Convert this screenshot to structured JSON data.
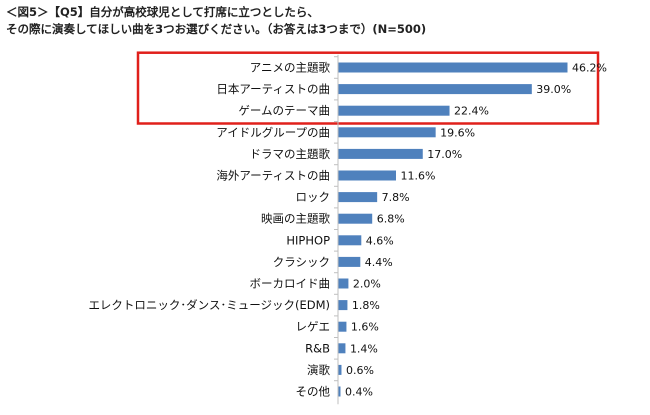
{
  "title_lines": [
    "＜図5＞【Q5】自分が高校球児として打席に立つとしたら、",
    "その際に演奏してほしい曲を3つお選びください。（お答えは3つまで）(N=500)"
  ],
  "colors": {
    "bar": "#4f81bd",
    "highlight_box": "#e0201b",
    "axis": "#bfbfbf"
  },
  "chart_data": {
    "type": "bar",
    "orientation": "horizontal",
    "title": "＜図5＞【Q5】自分が高校球児として打席に立つとしたら、その際に演奏してほしい曲を3つお選びください。（お答えは3つまで）(N=500)",
    "categories": [
      "アニメの主題歌",
      "日本アーティストの曲",
      "ゲームのテーマ曲",
      "アイドルグループの曲",
      "ドラマの主題歌",
      "海外アーティストの曲",
      "ロック",
      "映画の主題歌",
      "HIPHOP",
      "クラシック",
      "ボーカロイド曲",
      "エレクトロニック･ダンス･ミュージック(EDM)",
      "レゲエ",
      "R&B",
      "演歌",
      "その他"
    ],
    "values": [
      46.2,
      39.0,
      22.4,
      19.6,
      17.0,
      11.6,
      7.8,
      6.8,
      4.6,
      4.4,
      2.0,
      1.8,
      1.6,
      1.4,
      0.6,
      0.4
    ],
    "value_labels": [
      "46.2%",
      "39.0%",
      "22.4%",
      "19.6%",
      "17.0%",
      "11.6%",
      "7.8%",
      "6.8%",
      "4.6%",
      "4.4%",
      "2.0%",
      "1.8%",
      "1.6%",
      "1.4%",
      "0.6%",
      "0.4%"
    ],
    "xlim": [
      0,
      50
    ],
    "highlight_top_n": 3,
    "grid": false,
    "legend": "none"
  }
}
